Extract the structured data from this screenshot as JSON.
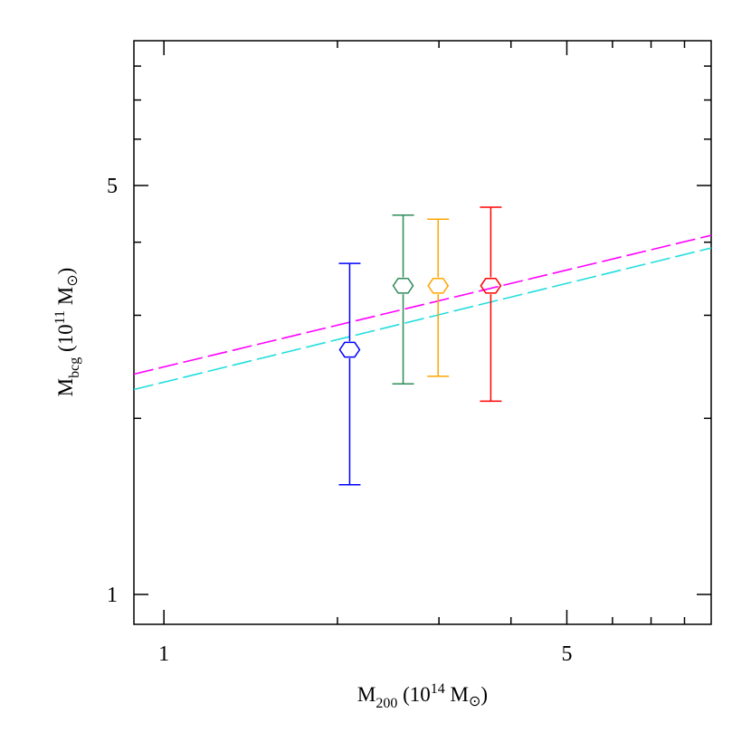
{
  "chart_data": {
    "type": "scatter",
    "xlabel": [
      "M",
      "200",
      " (10",
      "14",
      " M",
      "⊙",
      ")"
    ],
    "ylabel": [
      "M",
      "bcg",
      " (10",
      "11",
      " M",
      "⊙",
      ")"
    ],
    "xlog": true,
    "ylog": true,
    "xlim": [
      0.887,
      8.9
    ],
    "ylim": [
      0.889,
      8.84
    ],
    "xticks": [
      1,
      5
    ],
    "yticks": [
      1,
      5
    ],
    "xminor_ticks": [
      2,
      3,
      4,
      6,
      7,
      8
    ],
    "yminor_ticks": [
      2,
      3,
      4,
      6,
      7,
      8
    ],
    "marker": "hexagon",
    "series": [
      {
        "color": "#0000ff",
        "x": [
          2.1
        ],
        "values": [
          2.62
        ],
        "lower": [
          1.54
        ],
        "upper": [
          3.68
        ]
      },
      {
        "color": "#2e8b57",
        "x": [
          2.6
        ],
        "values": [
          3.37
        ],
        "lower": [
          2.29
        ],
        "upper": [
          4.45
        ]
      },
      {
        "color": "#ffa500",
        "x": [
          2.99
        ],
        "values": [
          3.37
        ],
        "lower": [
          2.36
        ],
        "upper": [
          4.38
        ]
      },
      {
        "color": "#ff0000",
        "x": [
          3.69
        ],
        "values": [
          3.37
        ],
        "lower": [
          2.14
        ],
        "upper": [
          4.59
        ]
      }
    ],
    "lines": [
      {
        "color": "#ff00ff",
        "x": [
          0.887,
          8.9
        ],
        "values": [
          2.38,
          4.11
        ],
        "dashed": true
      },
      {
        "color": "#22dddd",
        "x": [
          0.887,
          8.9
        ],
        "values": [
          2.24,
          3.91
        ],
        "dashed": true
      }
    ]
  }
}
